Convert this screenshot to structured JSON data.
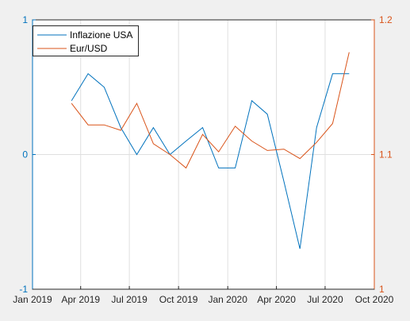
{
  "chart_data": {
    "type": "line",
    "title": "",
    "xlabel": "",
    "ylabel_left": "",
    "ylabel_right": "",
    "x_ticks": [
      "Jan 2019",
      "Apr 2019",
      "Jul 2019",
      "Oct 2019",
      "Jan 2020",
      "Apr 2020",
      "Jul 2020",
      "Oct 2020"
    ],
    "xlim": [
      "2019-01-01",
      "2020-10-01"
    ],
    "ylim_left": [
      -1,
      1
    ],
    "y_ticks_left": [
      "-1",
      "0",
      "1"
    ],
    "ylim_right": [
      1,
      1.2
    ],
    "y_ticks_right": [
      "1",
      "1.1",
      "1.2"
    ],
    "grid": true,
    "legend_position": "top-left",
    "colors": {
      "left_axis": "#0072bd",
      "right_axis": "#d95319",
      "grid": "#dfdfdf",
      "plot_bg": "#ffffff",
      "figure_bg": "#f0f0f0",
      "box": "#262626"
    },
    "series": [
      {
        "name": "Inflazione USA",
        "axis": "left",
        "color": "#0072bd",
        "x": [
          "2019-03-15",
          "2019-04-15",
          "2019-05-15",
          "2019-06-15",
          "2019-07-15",
          "2019-08-15",
          "2019-09-15",
          "2019-10-15",
          "2019-11-15",
          "2019-12-15",
          "2020-01-15",
          "2020-02-15",
          "2020-03-15",
          "2020-04-15",
          "2020-05-15",
          "2020-06-15",
          "2020-07-15",
          "2020-08-15"
        ],
        "y": [
          0.4,
          0.6,
          0.5,
          0.2,
          0.0,
          0.2,
          0.0,
          0.1,
          0.2,
          -0.1,
          -0.1,
          0.4,
          0.3,
          -0.2,
          -0.7,
          0.2,
          0.6,
          0.6
        ]
      },
      {
        "name": "Eur/USD",
        "axis": "right",
        "color": "#d95319",
        "x": [
          "2019-03-15",
          "2019-04-15",
          "2019-05-15",
          "2019-06-15",
          "2019-07-15",
          "2019-08-15",
          "2019-09-15",
          "2019-10-15",
          "2019-11-15",
          "2019-12-15",
          "2020-01-15",
          "2020-02-15",
          "2020-03-15",
          "2020-04-15",
          "2020-05-15",
          "2020-06-15",
          "2020-07-15",
          "2020-08-15"
        ],
        "y": [
          1.138,
          1.122,
          1.122,
          1.118,
          1.138,
          1.108,
          1.1,
          1.09,
          1.115,
          1.102,
          1.121,
          1.11,
          1.103,
          1.104,
          1.097,
          1.109,
          1.123,
          1.176
        ]
      }
    ]
  }
}
